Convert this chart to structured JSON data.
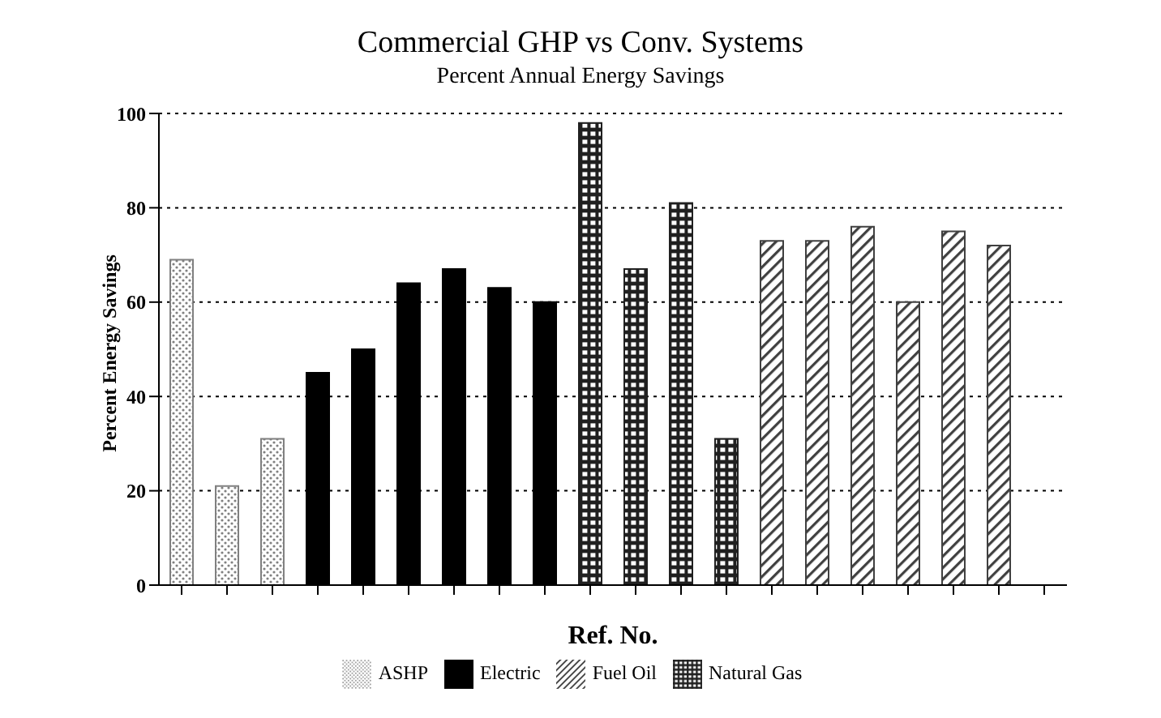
{
  "chart_data": {
    "type": "bar",
    "title": "Commercial GHP vs Conv. Systems",
    "subtitle": "Percent Annual Energy Savings",
    "xlabel": "Ref. No.",
    "ylabel": "Percent Energy Savings",
    "categories": [
      null,
      null,
      null,
      null,
      null,
      null,
      null,
      null,
      null,
      null,
      null,
      null,
      null,
      null,
      null,
      null,
      null,
      null,
      null,
      null
    ],
    "series": [
      {
        "name": "ASHP",
        "color": "#808080",
        "values": [
          69,
          21,
          31,
          null,
          null,
          null,
          null,
          null,
          null,
          null,
          null,
          null,
          null,
          null,
          null,
          null,
          null,
          null,
          null,
          null
        ]
      },
      {
        "name": "Electric",
        "color": "#000000",
        "values": [
          null,
          null,
          null,
          45,
          50,
          64,
          67,
          63,
          60,
          null,
          null,
          null,
          null,
          null,
          null,
          null,
          null,
          null,
          null,
          null
        ]
      },
      {
        "name": "Natural Gas",
        "color": "#202020",
        "values": [
          null,
          null,
          null,
          null,
          null,
          null,
          null,
          null,
          null,
          98,
          67,
          81,
          31,
          null,
          null,
          null,
          null,
          null,
          null,
          null
        ]
      },
      {
        "name": "Fuel Oil",
        "color": "#404040",
        "values": [
          null,
          null,
          null,
          null,
          null,
          null,
          null,
          null,
          null,
          null,
          null,
          null,
          null,
          73,
          73,
          76,
          60,
          75,
          72,
          null
        ]
      }
    ],
    "ylim": [
      0,
      100
    ],
    "yticks": [
      0,
      20,
      40,
      60,
      80,
      100
    ],
    "grid": "y",
    "legend": "bottom"
  }
}
